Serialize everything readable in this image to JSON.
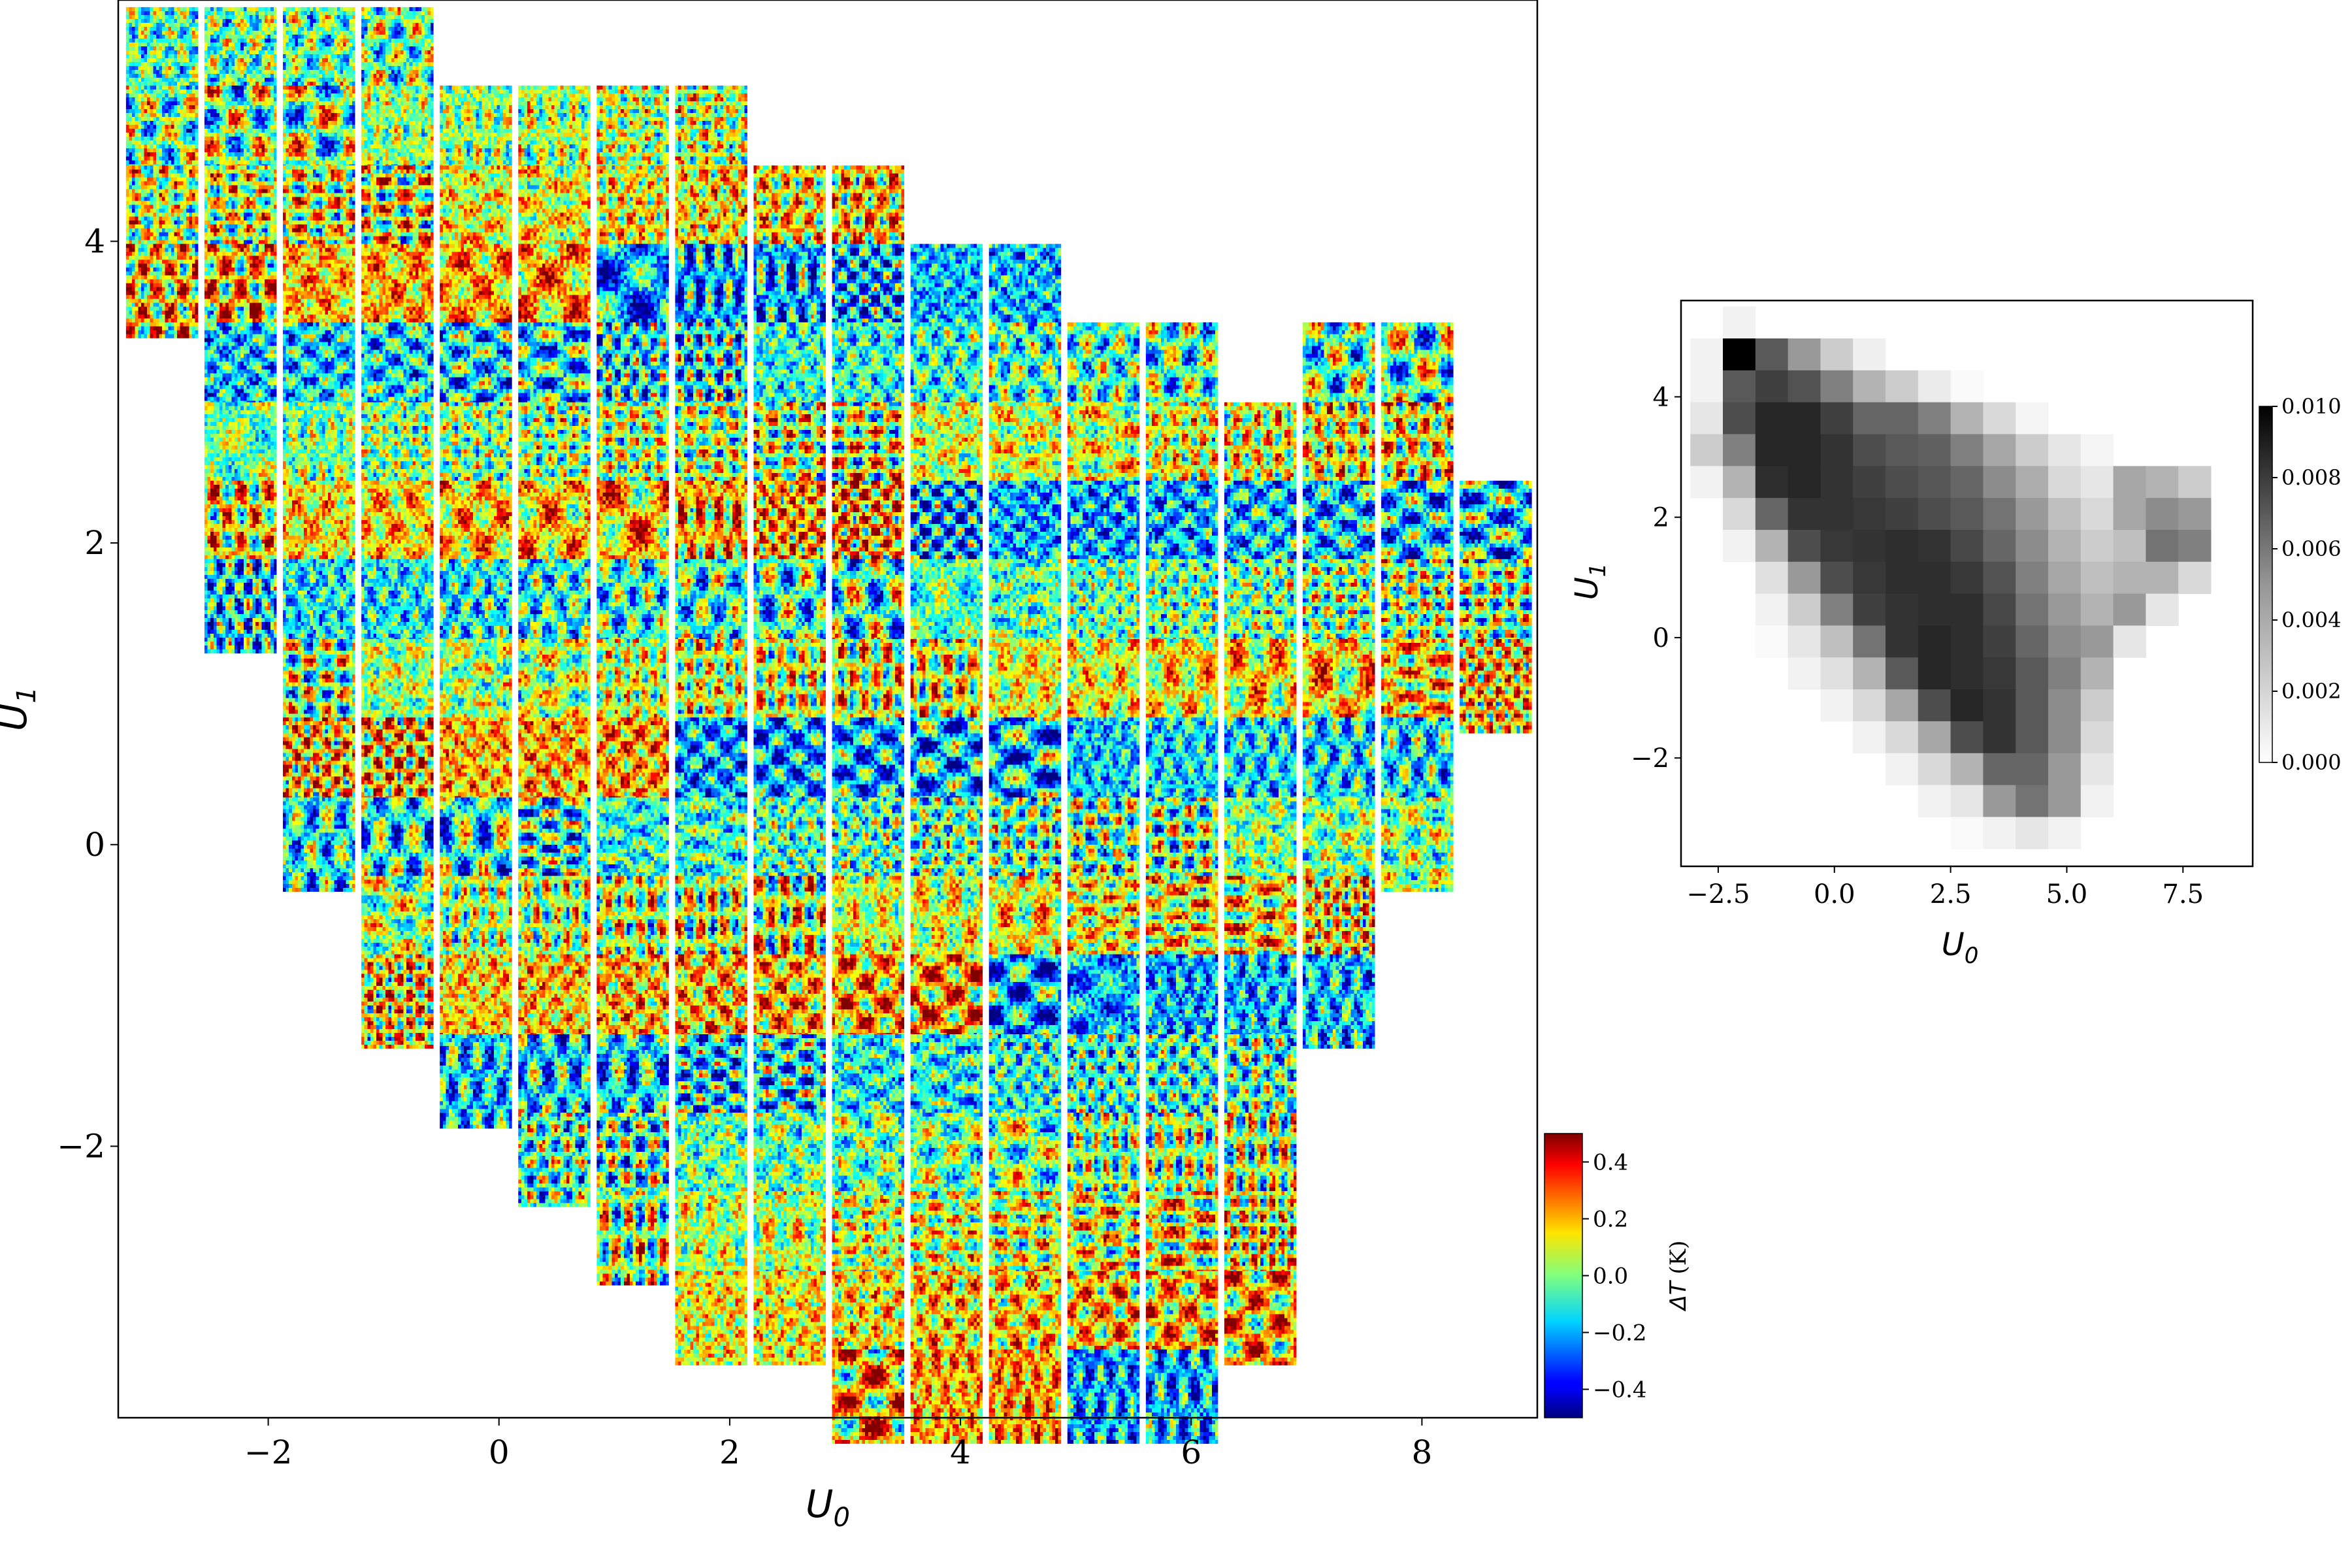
{
  "chart_data": [
    {
      "type": "heatmap",
      "title": "",
      "xlabel": "U_0",
      "ylabel": "U_1",
      "xlim": [
        -3.3,
        9.0
      ],
      "ylim": [
        -3.8,
        5.6
      ],
      "xticks": [
        -2,
        0,
        2,
        4,
        6,
        8
      ],
      "yticks": [
        -2,
        0,
        2,
        4
      ],
      "xtick_labels": [
        "−2",
        "0",
        "2",
        "4",
        "6",
        "8"
      ],
      "ytick_labels": [
        "−2",
        "0",
        "2",
        "4"
      ],
      "grid": false,
      "cell_size": 0.68,
      "tile_centers": {
        "x0": -2.92,
        "dx": 0.68,
        "y0": 5.24,
        "dy": -0.523,
        "rows": [
          {
            "y": 5.24,
            "cols": [
              0,
              1,
              2,
              3
            ]
          },
          {
            "y": 4.72,
            "cols": [
              0,
              1,
              2,
              3,
              4,
              5,
              6,
              7
            ]
          },
          {
            "y": 4.19,
            "cols": [
              0,
              1,
              2,
              3,
              4,
              5,
              6,
              7,
              8,
              9
            ]
          },
          {
            "y": 3.67,
            "cols": [
              0,
              1,
              2,
              3,
              4,
              5,
              6,
              7,
              8,
              9,
              10,
              11
            ]
          },
          {
            "y": 3.15,
            "cols": [
              1,
              2,
              3,
              4,
              5,
              6,
              7,
              8,
              9,
              10,
              11,
              12,
              13,
              15,
              16
            ]
          },
          {
            "y": 2.62,
            "cols": [
              1,
              2,
              3,
              4,
              5,
              6,
              7,
              8,
              9,
              10,
              11,
              12,
              13,
              14,
              15,
              16
            ]
          },
          {
            "y": 2.1,
            "cols": [
              1,
              2,
              3,
              4,
              5,
              6,
              7,
              8,
              9,
              10,
              11,
              12,
              13,
              14,
              15,
              16,
              17
            ]
          },
          {
            "y": 1.58,
            "cols": [
              1,
              2,
              3,
              4,
              5,
              6,
              7,
              8,
              9,
              10,
              11,
              12,
              13,
              14,
              15,
              16,
              17
            ]
          },
          {
            "y": 1.05,
            "cols": [
              2,
              3,
              4,
              5,
              6,
              7,
              8,
              9,
              10,
              11,
              12,
              13,
              14,
              15,
              16,
              17
            ]
          },
          {
            "y": 0.53,
            "cols": [
              2,
              3,
              4,
              5,
              6,
              7,
              8,
              9,
              10,
              11,
              12,
              13,
              14,
              15,
              16
            ]
          },
          {
            "y": 0.0,
            "cols": [
              2,
              3,
              4,
              5,
              6,
              7,
              8,
              9,
              10,
              11,
              12,
              13,
              14,
              15,
              16
            ]
          },
          {
            "y": -0.52,
            "cols": [
              3,
              4,
              5,
              6,
              7,
              8,
              9,
              10,
              11,
              12,
              13,
              14,
              15
            ]
          },
          {
            "y": -1.04,
            "cols": [
              3,
              4,
              5,
              6,
              7,
              8,
              9,
              10,
              11,
              12,
              13,
              14,
              15
            ]
          },
          {
            "y": -1.57,
            "cols": [
              4,
              5,
              6,
              7,
              8,
              9,
              10,
              11,
              12,
              13,
              14
            ]
          },
          {
            "y": -2.09,
            "cols": [
              5,
              6,
              7,
              8,
              9,
              10,
              11,
              12,
              13,
              14
            ]
          },
          {
            "y": -2.61,
            "cols": [
              6,
              7,
              8,
              9,
              10,
              11,
              12,
              13,
              14
            ]
          },
          {
            "y": -3.14,
            "cols": [
              7,
              8,
              9,
              10,
              11,
              12,
              13,
              14
            ]
          },
          {
            "y": -3.66,
            "cols": [
              9,
              10,
              11,
              12,
              13
            ]
          }
        ]
      },
      "colorbar": {
        "label": "ΔT (K)",
        "cmap": "jet",
        "range": [
          -0.5,
          0.5
        ],
        "ticks": [
          0.4,
          0.2,
          0.0,
          -0.2,
          -0.4
        ],
        "tick_labels": [
          "0.4",
          "0.2",
          "0.0",
          "−0.2",
          "−0.4"
        ]
      }
    },
    {
      "type": "heatmap",
      "title": "",
      "xlabel": "U_0",
      "ylabel": "U_1",
      "xlim": [
        -3.3,
        9.0
      ],
      "ylim": [
        -3.8,
        5.6
      ],
      "xticks": [
        -2.5,
        0.0,
        2.5,
        5.0,
        7.5
      ],
      "yticks": [
        -2,
        0,
        2,
        4
      ],
      "xtick_labels": [
        "−2.5",
        "0.0",
        "2.5",
        "5.0",
        "7.5"
      ],
      "ytick_labels": [
        "−2",
        "0",
        "2",
        "4"
      ],
      "grid": false,
      "bin_x0": -3.1,
      "bin_dx": 0.7,
      "bin_y0": 5.5,
      "bin_dy": -0.53,
      "values": [
        [
          0.0,
          0.0005,
          0.0,
          0.0,
          0.0,
          0.0,
          0.0,
          0.0,
          0.0,
          0.0,
          0.0,
          0.0,
          0.0,
          0.0,
          0.0,
          0.0
        ],
        [
          0.0005,
          0.01,
          0.0065,
          0.004,
          0.002,
          0.0006,
          0.0,
          0.0,
          0.0,
          0.0,
          0.0,
          0.0,
          0.0,
          0.0,
          0.0,
          0.0
        ],
        [
          0.0005,
          0.0065,
          0.0075,
          0.0068,
          0.005,
          0.003,
          0.002,
          0.0008,
          0.0002,
          0.0,
          0.0,
          0.0,
          0.0,
          0.0,
          0.0,
          0.0
        ],
        [
          0.001,
          0.007,
          0.0085,
          0.0085,
          0.0075,
          0.006,
          0.006,
          0.005,
          0.003,
          0.0015,
          0.0004,
          0.0,
          0.0,
          0.0,
          0.0,
          0.0
        ],
        [
          0.002,
          0.005,
          0.0085,
          0.0085,
          0.008,
          0.007,
          0.0065,
          0.0062,
          0.005,
          0.0035,
          0.002,
          0.001,
          0.0004,
          0.0,
          0.0,
          0.0
        ],
        [
          0.0005,
          0.003,
          0.0082,
          0.0085,
          0.008,
          0.0075,
          0.007,
          0.0066,
          0.006,
          0.0045,
          0.0032,
          0.0015,
          0.001,
          0.0035,
          0.003,
          0.002
        ],
        [
          0.0,
          0.0015,
          0.006,
          0.008,
          0.008,
          0.0078,
          0.0075,
          0.007,
          0.0065,
          0.0055,
          0.004,
          0.0025,
          0.0015,
          0.0035,
          0.0045,
          0.004
        ],
        [
          0.0,
          0.0005,
          0.003,
          0.007,
          0.0078,
          0.008,
          0.0082,
          0.008,
          0.0072,
          0.006,
          0.0045,
          0.003,
          0.002,
          0.0025,
          0.0055,
          0.005
        ],
        [
          0.0,
          0.0,
          0.0012,
          0.004,
          0.007,
          0.0078,
          0.0082,
          0.0082,
          0.0078,
          0.0068,
          0.005,
          0.0035,
          0.0025,
          0.003,
          0.003,
          0.0015
        ],
        [
          0.0,
          0.0,
          0.0005,
          0.002,
          0.005,
          0.0075,
          0.008,
          0.0082,
          0.0082,
          0.0072,
          0.0055,
          0.004,
          0.003,
          0.004,
          0.001,
          0.0
        ],
        [
          0.0,
          0.0,
          0.0002,
          0.001,
          0.0025,
          0.0055,
          0.008,
          0.0085,
          0.0082,
          0.0075,
          0.006,
          0.0045,
          0.004,
          0.001,
          0.0,
          0.0
        ],
        [
          0.0,
          0.0,
          0.0,
          0.0005,
          0.0012,
          0.003,
          0.0065,
          0.0085,
          0.0082,
          0.0078,
          0.0065,
          0.005,
          0.003,
          0.0,
          0.0,
          0.0
        ],
        [
          0.0,
          0.0,
          0.0,
          0.0,
          0.0005,
          0.0015,
          0.0035,
          0.007,
          0.0085,
          0.008,
          0.0065,
          0.0045,
          0.002,
          0.0,
          0.0,
          0.0
        ],
        [
          0.0,
          0.0,
          0.0,
          0.0,
          0.0,
          0.0005,
          0.0015,
          0.0035,
          0.007,
          0.008,
          0.0065,
          0.0045,
          0.0015,
          0.0,
          0.0,
          0.0
        ],
        [
          0.0,
          0.0,
          0.0,
          0.0,
          0.0,
          0.0,
          0.0005,
          0.0015,
          0.003,
          0.006,
          0.006,
          0.004,
          0.001,
          0.0,
          0.0,
          0.0
        ],
        [
          0.0,
          0.0,
          0.0,
          0.0,
          0.0,
          0.0,
          0.0,
          0.0005,
          0.001,
          0.004,
          0.0055,
          0.004,
          0.0005,
          0.0,
          0.0,
          0.0
        ],
        [
          0.0,
          0.0,
          0.0,
          0.0,
          0.0,
          0.0,
          0.0,
          0.0,
          0.0002,
          0.0005,
          0.001,
          0.0005,
          0.0,
          0.0,
          0.0,
          0.0
        ]
      ],
      "colorbar": {
        "label": "",
        "cmap": "Greys",
        "range": [
          0.0,
          0.01
        ],
        "ticks": [
          0.01,
          0.008,
          0.006,
          0.004,
          0.002,
          0.0
        ],
        "tick_labels": [
          "0.010",
          "0.008",
          "0.006",
          "0.004",
          "0.002",
          "0.000"
        ]
      }
    }
  ]
}
